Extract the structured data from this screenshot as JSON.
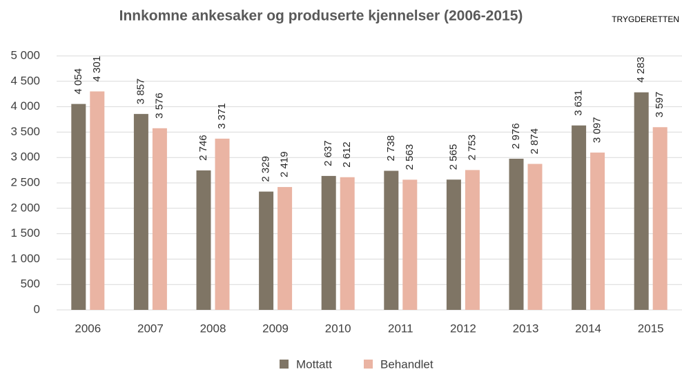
{
  "chart_data": {
    "type": "bar",
    "title": "Innkomne ankesaker og produserte kjennelser (2006-2015)",
    "source": "TRYGDERETTEN",
    "categories": [
      "2006",
      "2007",
      "2008",
      "2009",
      "2010",
      "2011",
      "2012",
      "2013",
      "2014",
      "2015"
    ],
    "series": [
      {
        "name": "Mottatt",
        "color": "#7f7565",
        "values": [
          4054,
          3857,
          2746,
          2329,
          2637,
          2738,
          2565,
          2976,
          3631,
          4283
        ],
        "value_labels": [
          "4 054",
          "3 857",
          "2 746",
          "2 329",
          "2 637",
          "2 738",
          "2 565",
          "2 976",
          "3 631",
          "4 283"
        ]
      },
      {
        "name": "Behandlet",
        "color": "#eab4a3",
        "values": [
          4301,
          3576,
          3371,
          2419,
          2612,
          2563,
          2753,
          2874,
          3097,
          3597
        ],
        "value_labels": [
          "4 301",
          "3 576",
          "3 371",
          "2 419",
          "2 612",
          "2 563",
          "2 753",
          "2 874",
          "3 097",
          "3 597"
        ]
      }
    ],
    "ylim": [
      0,
      5000
    ],
    "yticks": [
      0,
      500,
      {
        "value": 1000,
        "label": "1 000"
      },
      {
        "value": 1500,
        "label": "1 500"
      },
      {
        "value": 2000,
        "label": "2 000"
      },
      {
        "value": 2500,
        "label": "2 500"
      },
      {
        "value": 3000,
        "label": "3 000"
      },
      {
        "value": 3500,
        "label": "3 500"
      },
      {
        "value": 4000,
        "label": "4 000"
      },
      {
        "value": 4500,
        "label": "4 500"
      },
      {
        "value": 5000,
        "label": "5 000"
      }
    ],
    "grid": true,
    "legend": "bottom"
  }
}
